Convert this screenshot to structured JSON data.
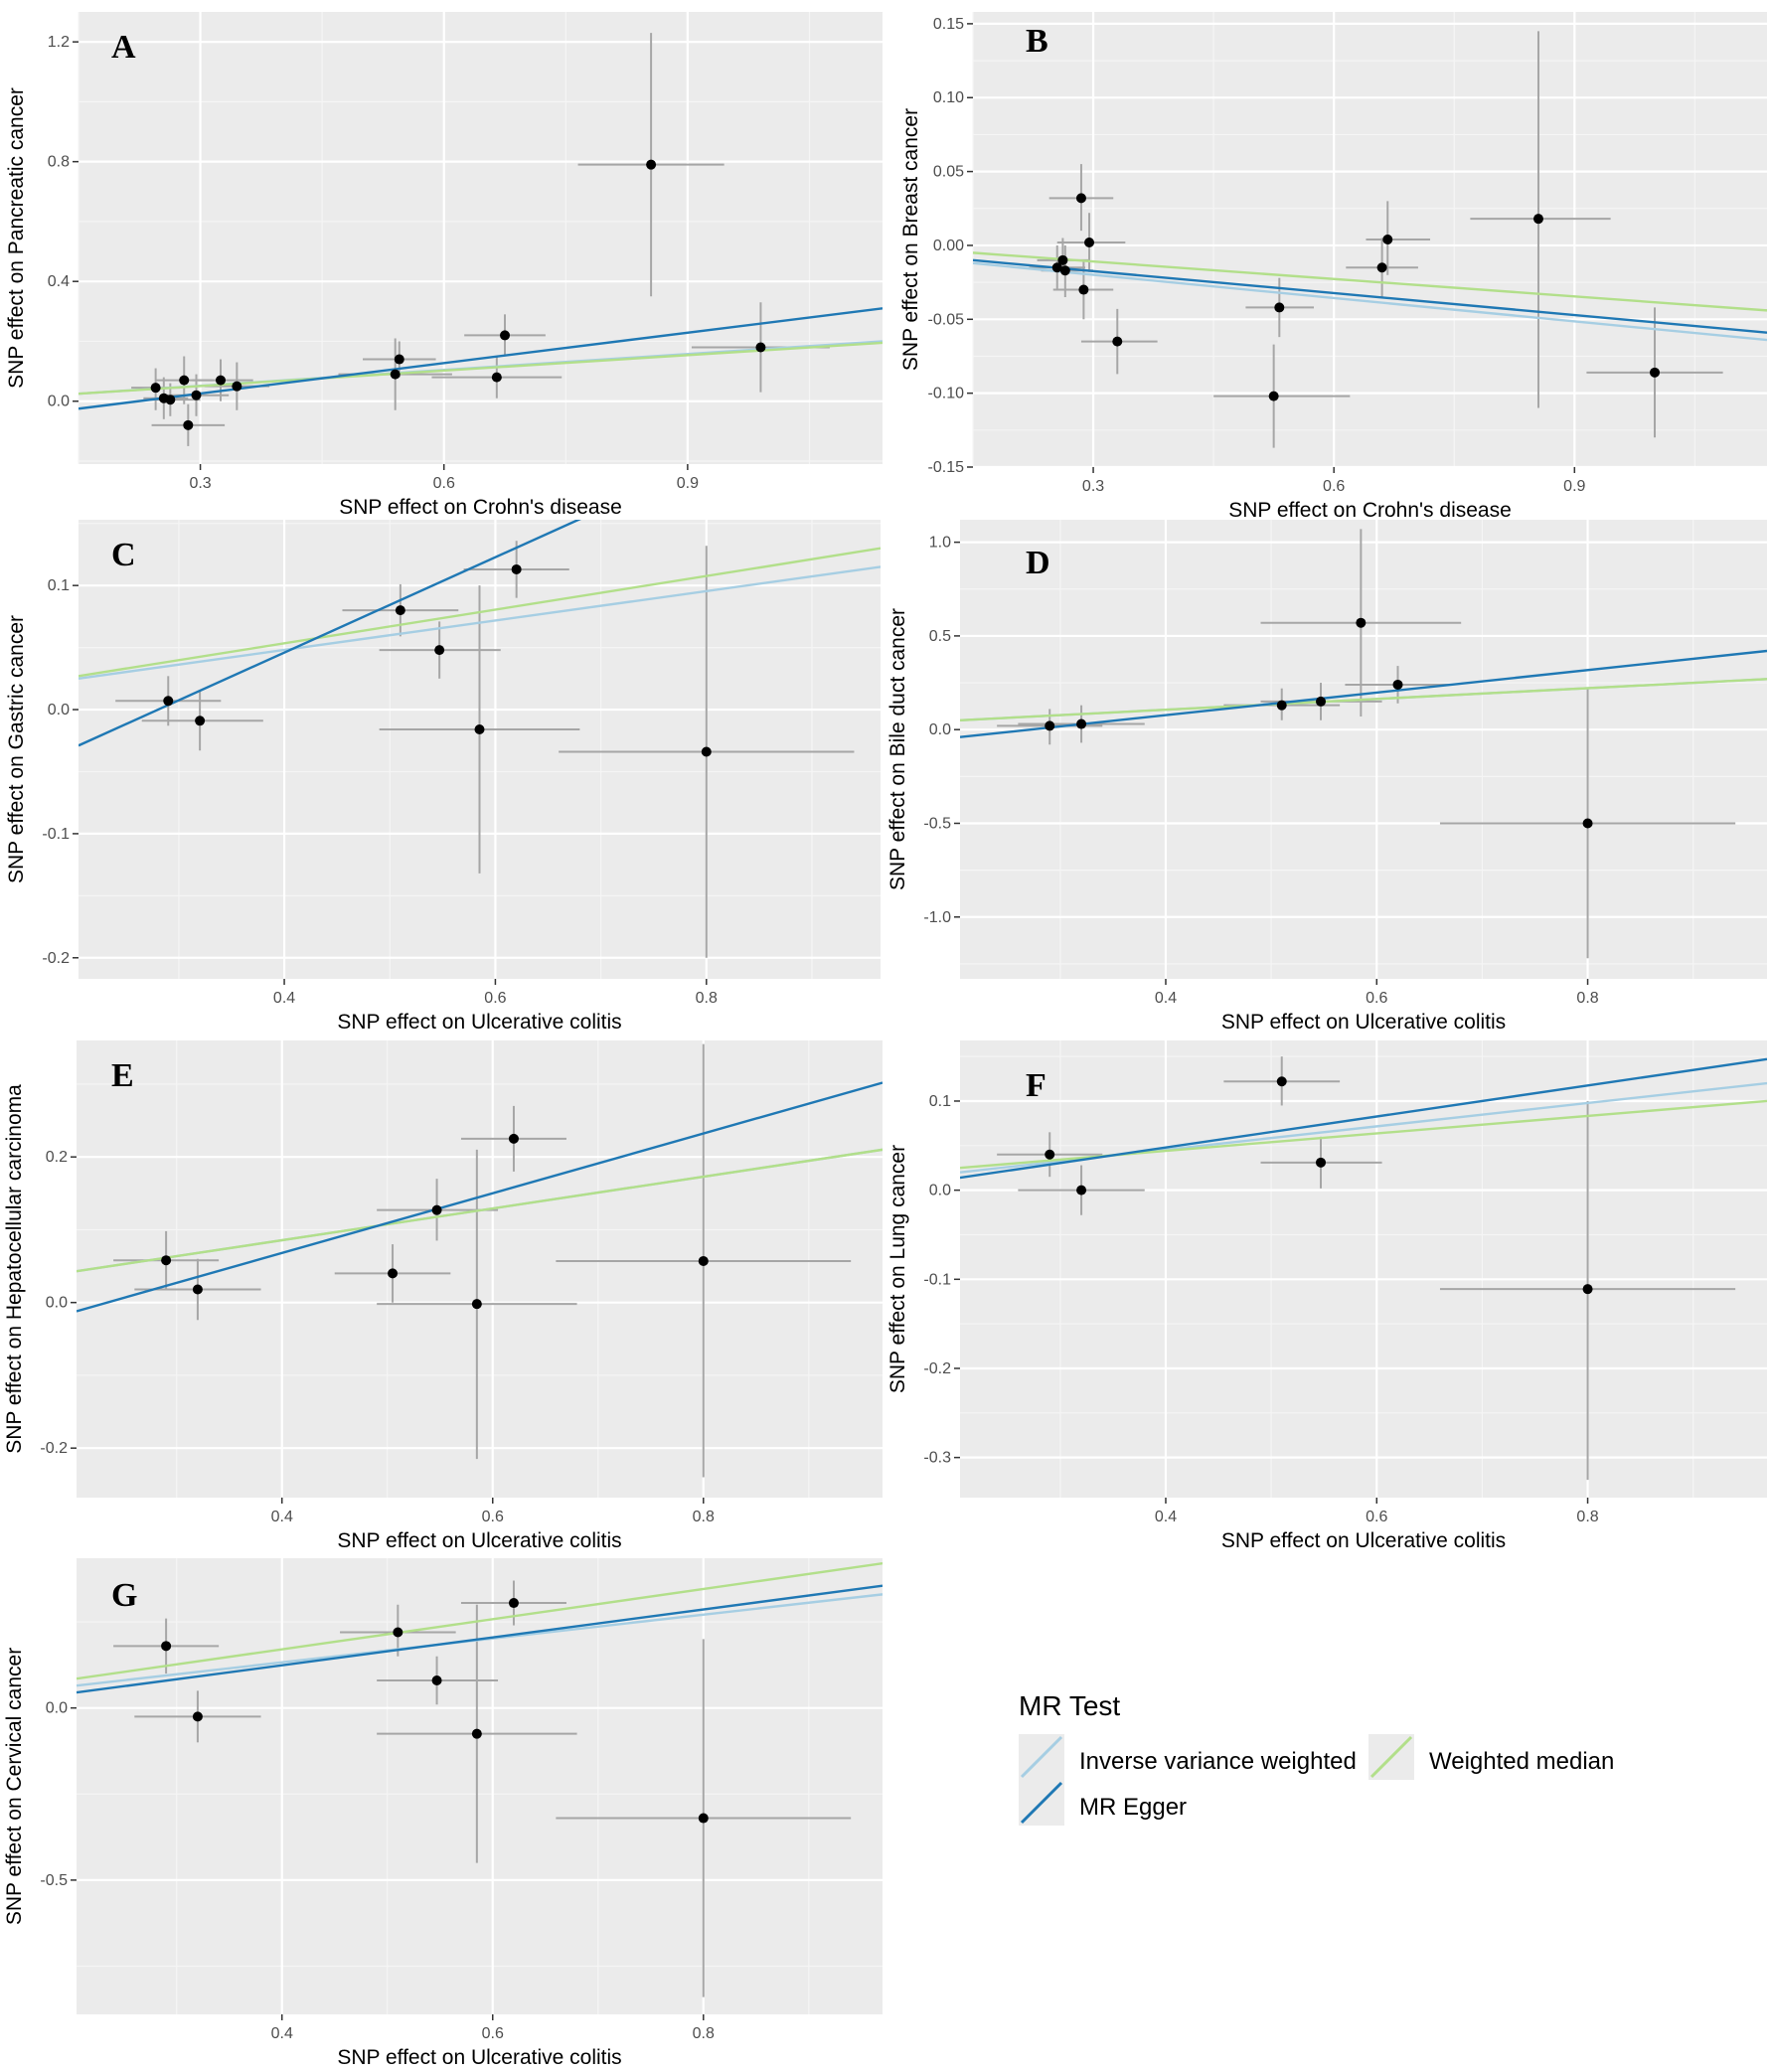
{
  "colors": {
    "panel_bg": "#ebebeb",
    "grid_major": "#ffffff",
    "errbar": "#a6a6a6",
    "point": "#000000",
    "ivw": "#a6cee3",
    "egger": "#1f78b4",
    "wmedian": "#b2df8a"
  },
  "legend": {
    "title": "MR Test",
    "items": [
      {
        "key": "ivw",
        "label": "Inverse variance weighted"
      },
      {
        "key": "wmedian",
        "label": "Weighted median"
      },
      {
        "key": "egger",
        "label": "MR Egger"
      }
    ]
  },
  "chart_data": [
    {
      "panel": "A",
      "type": "scatter",
      "xlabel": "SNP effect on Crohn's disease",
      "ylabel": "SNP effect on Pancreatic cancer",
      "xlim": [
        0.15,
        1.14
      ],
      "ylim": [
        -0.21,
        1.3
      ],
      "xticks": [
        0.3,
        0.6,
        0.9
      ],
      "xtick_labels": [
        "0.3",
        "0.6",
        "0.9"
      ],
      "yticks": [
        0.0,
        0.4,
        0.8,
        1.2
      ],
      "ytick_labels": [
        "0.0",
        "0.4",
        "0.8",
        "1.2"
      ],
      "points": [
        {
          "x": 0.245,
          "y": 0.045,
          "xlo": 0.215,
          "xhi": 0.275,
          "ylo": -0.03,
          "yhi": 0.11
        },
        {
          "x": 0.255,
          "y": 0.01,
          "xlo": 0.23,
          "xhi": 0.285,
          "ylo": -0.06,
          "yhi": 0.08
        },
        {
          "x": 0.263,
          "y": 0.005,
          "xlo": 0.23,
          "xhi": 0.3,
          "ylo": -0.05,
          "yhi": 0.06
        },
        {
          "x": 0.28,
          "y": 0.07,
          "xlo": 0.245,
          "xhi": 0.315,
          "ylo": -0.01,
          "yhi": 0.15
        },
        {
          "x": 0.285,
          "y": -0.08,
          "xlo": 0.24,
          "xhi": 0.33,
          "ylo": -0.15,
          "yhi": -0.01
        },
        {
          "x": 0.295,
          "y": 0.02,
          "xlo": 0.255,
          "xhi": 0.335,
          "ylo": -0.05,
          "yhi": 0.09
        },
        {
          "x": 0.325,
          "y": 0.07,
          "xlo": 0.29,
          "xhi": 0.365,
          "ylo": 0.0,
          "yhi": 0.14
        },
        {
          "x": 0.345,
          "y": 0.05,
          "xlo": 0.305,
          "xhi": 0.385,
          "ylo": -0.03,
          "yhi": 0.13
        },
        {
          "x": 0.54,
          "y": 0.09,
          "xlo": 0.47,
          "xhi": 0.61,
          "ylo": -0.03,
          "yhi": 0.21
        },
        {
          "x": 0.545,
          "y": 0.14,
          "xlo": 0.5,
          "xhi": 0.59,
          "ylo": 0.08,
          "yhi": 0.2
        },
        {
          "x": 0.665,
          "y": 0.08,
          "xlo": 0.585,
          "xhi": 0.745,
          "ylo": 0.01,
          "yhi": 0.15
        },
        {
          "x": 0.675,
          "y": 0.22,
          "xlo": 0.625,
          "xhi": 0.725,
          "ylo": 0.15,
          "yhi": 0.29
        },
        {
          "x": 0.855,
          "y": 0.79,
          "xlo": 0.765,
          "xhi": 0.945,
          "ylo": 0.35,
          "yhi": 1.23
        },
        {
          "x": 0.99,
          "y": 0.18,
          "xlo": 0.905,
          "xhi": 1.075,
          "ylo": 0.03,
          "yhi": 0.33
        }
      ],
      "lines": [
        {
          "key": "ivw",
          "y_at_xmin": 0.025,
          "y_at_xmax": 0.2
        },
        {
          "key": "wmedian",
          "y_at_xmin": 0.025,
          "y_at_xmax": 0.195
        },
        {
          "key": "egger",
          "y_at_xmin": -0.025,
          "y_at_xmax": 0.31
        }
      ]
    },
    {
      "panel": "B",
      "type": "scatter",
      "xlabel": "SNP effect on Crohn's disease",
      "ylabel": "SNP effect on Breast cancer",
      "xlim": [
        0.15,
        1.14
      ],
      "ylim": [
        -0.15,
        0.158
      ],
      "xticks": [
        0.3,
        0.6,
        0.9
      ],
      "xtick_labels": [
        "0.3",
        "0.6",
        "0.9"
      ],
      "yticks": [
        -0.15,
        -0.1,
        -0.05,
        0.0,
        0.05,
        0.1,
        0.15
      ],
      "ytick_labels": [
        "-0.15",
        "-0.10",
        "-0.05",
        "0.00",
        "0.05",
        "0.10",
        "0.15"
      ],
      "points": [
        {
          "x": 0.255,
          "y": -0.015,
          "xlo": 0.22,
          "xhi": 0.29,
          "ylo": -0.03,
          "yhi": 0.0
        },
        {
          "x": 0.262,
          "y": -0.01,
          "xlo": 0.23,
          "xhi": 0.295,
          "ylo": -0.02,
          "yhi": 0.005
        },
        {
          "x": 0.265,
          "y": -0.017,
          "xlo": 0.235,
          "xhi": 0.3,
          "ylo": -0.035,
          "yhi": 0.0
        },
        {
          "x": 0.285,
          "y": 0.032,
          "xlo": 0.245,
          "xhi": 0.325,
          "ylo": 0.01,
          "yhi": 0.055
        },
        {
          "x": 0.288,
          "y": -0.03,
          "xlo": 0.25,
          "xhi": 0.325,
          "ylo": -0.05,
          "yhi": -0.01
        },
        {
          "x": 0.295,
          "y": 0.002,
          "xlo": 0.255,
          "xhi": 0.34,
          "ylo": -0.018,
          "yhi": 0.022
        },
        {
          "x": 0.33,
          "y": -0.065,
          "xlo": 0.285,
          "xhi": 0.38,
          "ylo": -0.087,
          "yhi": -0.043
        },
        {
          "x": 0.525,
          "y": -0.102,
          "xlo": 0.45,
          "xhi": 0.62,
          "ylo": -0.137,
          "yhi": -0.067
        },
        {
          "x": 0.532,
          "y": -0.042,
          "xlo": 0.49,
          "xhi": 0.575,
          "ylo": -0.062,
          "yhi": -0.022
        },
        {
          "x": 0.66,
          "y": -0.015,
          "xlo": 0.615,
          "xhi": 0.705,
          "ylo": -0.035,
          "yhi": 0.005
        },
        {
          "x": 0.667,
          "y": 0.004,
          "xlo": 0.64,
          "xhi": 0.72,
          "ylo": -0.02,
          "yhi": 0.03
        },
        {
          "x": 0.855,
          "y": 0.018,
          "xlo": 0.77,
          "xhi": 0.945,
          "ylo": -0.11,
          "yhi": 0.145
        },
        {
          "x": 1.0,
          "y": -0.086,
          "xlo": 0.915,
          "xhi": 1.085,
          "ylo": -0.13,
          "yhi": -0.042
        }
      ],
      "lines": [
        {
          "key": "ivw",
          "y_at_xmin": -0.012,
          "y_at_xmax": -0.064
        },
        {
          "key": "wmedian",
          "y_at_xmin": -0.005,
          "y_at_xmax": -0.044
        },
        {
          "key": "egger",
          "y_at_xmin": -0.01,
          "y_at_xmax": -0.059
        }
      ]
    },
    {
      "panel": "C",
      "type": "scatter",
      "xlabel": "SNP effect on Ulcerative colitis",
      "ylabel": "SNP effect on Gastric cancer",
      "xlim": [
        0.205,
        0.965
      ],
      "ylim": [
        -0.217,
        0.153
      ],
      "xticks": [
        0.4,
        0.6,
        0.8
      ],
      "xtick_labels": [
        "0.4",
        "0.6",
        "0.8"
      ],
      "yticks": [
        -0.2,
        -0.1,
        0.0,
        0.1
      ],
      "ytick_labels": [
        "-0.2",
        "-0.1",
        "0.0",
        "0.1"
      ],
      "points": [
        {
          "x": 0.29,
          "y": 0.007,
          "xlo": 0.24,
          "xhi": 0.34,
          "ylo": -0.013,
          "yhi": 0.027
        },
        {
          "x": 0.32,
          "y": -0.009,
          "xlo": 0.265,
          "xhi": 0.38,
          "ylo": -0.033,
          "yhi": 0.015
        },
        {
          "x": 0.51,
          "y": 0.08,
          "xlo": 0.455,
          "xhi": 0.565,
          "ylo": 0.059,
          "yhi": 0.101
        },
        {
          "x": 0.547,
          "y": 0.048,
          "xlo": 0.49,
          "xhi": 0.605,
          "ylo": 0.025,
          "yhi": 0.071
        },
        {
          "x": 0.585,
          "y": -0.016,
          "xlo": 0.49,
          "xhi": 0.68,
          "ylo": -0.132,
          "yhi": 0.1
        },
        {
          "x": 0.62,
          "y": 0.113,
          "xlo": 0.57,
          "xhi": 0.67,
          "ylo": 0.09,
          "yhi": 0.136
        },
        {
          "x": 0.8,
          "y": -0.034,
          "xlo": 0.66,
          "xhi": 0.94,
          "ylo": -0.2,
          "yhi": 0.132
        }
      ],
      "lines": [
        {
          "key": "ivw",
          "y_at_xmin": 0.025,
          "y_at_xmax": 0.115
        },
        {
          "key": "wmedian",
          "y_at_xmin": 0.027,
          "y_at_xmax": 0.13
        },
        {
          "key": "egger",
          "y_at_xmin": -0.029,
          "y_at_xmax": 0.263
        }
      ]
    },
    {
      "panel": "D",
      "type": "scatter",
      "xlabel": "SNP effect on Ulcerative colitis",
      "ylabel": "SNP effect on Bile duct cancer",
      "xlim": [
        0.205,
        0.97
      ],
      "ylim": [
        -1.33,
        1.12
      ],
      "xticks": [
        0.4,
        0.6,
        0.8
      ],
      "xtick_labels": [
        "0.4",
        "0.6",
        "0.8"
      ],
      "yticks": [
        -1.0,
        -0.5,
        0.0,
        0.5,
        1.0
      ],
      "ytick_labels": [
        "-1.0",
        "-0.5",
        "0.0",
        "0.5",
        "1.0"
      ],
      "points": [
        {
          "x": 0.29,
          "y": 0.02,
          "xlo": 0.24,
          "xhi": 0.34,
          "ylo": -0.08,
          "yhi": 0.11
        },
        {
          "x": 0.32,
          "y": 0.03,
          "xlo": 0.26,
          "xhi": 0.38,
          "ylo": -0.07,
          "yhi": 0.13
        },
        {
          "x": 0.51,
          "y": 0.13,
          "xlo": 0.455,
          "xhi": 0.565,
          "ylo": 0.05,
          "yhi": 0.22
        },
        {
          "x": 0.547,
          "y": 0.15,
          "xlo": 0.49,
          "xhi": 0.605,
          "ylo": 0.05,
          "yhi": 0.25
        },
        {
          "x": 0.585,
          "y": 0.57,
          "xlo": 0.49,
          "xhi": 0.68,
          "ylo": 0.07,
          "yhi": 1.07
        },
        {
          "x": 0.62,
          "y": 0.24,
          "xlo": 0.57,
          "xhi": 0.67,
          "ylo": 0.14,
          "yhi": 0.34
        },
        {
          "x": 0.8,
          "y": -0.5,
          "xlo": 0.66,
          "xhi": 0.94,
          "ylo": -1.22,
          "yhi": 0.22
        }
      ],
      "lines": [
        {
          "key": "ivw",
          "y_at_xmin": 0.05,
          "y_at_xmax": 0.27
        },
        {
          "key": "wmedian",
          "y_at_xmin": 0.05,
          "y_at_xmax": 0.27
        },
        {
          "key": "egger",
          "y_at_xmin": -0.04,
          "y_at_xmax": 0.42
        }
      ]
    },
    {
      "panel": "E",
      "type": "scatter",
      "xlabel": "SNP effect on Ulcerative colitis",
      "ylabel": "SNP effect on Hepatocellular carcinoma",
      "xlim": [
        0.205,
        0.97
      ],
      "ylim": [
        -0.268,
        0.36
      ],
      "xticks": [
        0.4,
        0.6,
        0.8
      ],
      "xtick_labels": [
        "0.4",
        "0.6",
        "0.8"
      ],
      "yticks": [
        -0.2,
        0.0,
        0.2
      ],
      "ytick_labels": [
        "-0.2",
        "0.0",
        "0.2"
      ],
      "points": [
        {
          "x": 0.29,
          "y": 0.058,
          "xlo": 0.24,
          "xhi": 0.34,
          "ylo": 0.018,
          "yhi": 0.098
        },
        {
          "x": 0.32,
          "y": 0.018,
          "xlo": 0.26,
          "xhi": 0.38,
          "ylo": -0.024,
          "yhi": 0.06
        },
        {
          "x": 0.505,
          "y": 0.04,
          "xlo": 0.45,
          "xhi": 0.56,
          "ylo": 0.0,
          "yhi": 0.08
        },
        {
          "x": 0.547,
          "y": 0.127,
          "xlo": 0.49,
          "xhi": 0.605,
          "ylo": 0.085,
          "yhi": 0.17
        },
        {
          "x": 0.585,
          "y": -0.002,
          "xlo": 0.49,
          "xhi": 0.68,
          "ylo": -0.215,
          "yhi": 0.21
        },
        {
          "x": 0.62,
          "y": 0.225,
          "xlo": 0.57,
          "xhi": 0.67,
          "ylo": 0.18,
          "yhi": 0.27
        },
        {
          "x": 0.8,
          "y": 0.057,
          "xlo": 0.66,
          "xhi": 0.94,
          "ylo": -0.24,
          "yhi": 0.355
        }
      ],
      "lines": [
        {
          "key": "ivw",
          "y_at_xmin": 0.043,
          "y_at_xmax": 0.21
        },
        {
          "key": "wmedian",
          "y_at_xmin": 0.043,
          "y_at_xmax": 0.21
        },
        {
          "key": "egger",
          "y_at_xmin": -0.012,
          "y_at_xmax": 0.302
        }
      ]
    },
    {
      "panel": "F",
      "type": "scatter",
      "xlabel": "SNP effect on Ulcerative colitis",
      "ylabel": "SNP effect on Lung cancer",
      "xlim": [
        0.205,
        0.97
      ],
      "ylim": [
        -0.345,
        0.168
      ],
      "xticks": [
        0.4,
        0.6,
        0.8
      ],
      "xtick_labels": [
        "0.4",
        "0.6",
        "0.8"
      ],
      "yticks": [
        -0.3,
        -0.2,
        -0.1,
        0.0,
        0.1
      ],
      "ytick_labels": [
        "-0.3",
        "-0.2",
        "-0.1",
        "0.0",
        "0.1"
      ],
      "points": [
        {
          "x": 0.29,
          "y": 0.04,
          "xlo": 0.24,
          "xhi": 0.34,
          "ylo": 0.015,
          "yhi": 0.065
        },
        {
          "x": 0.32,
          "y": 0.0,
          "xlo": 0.26,
          "xhi": 0.38,
          "ylo": -0.028,
          "yhi": 0.028
        },
        {
          "x": 0.51,
          "y": 0.122,
          "xlo": 0.455,
          "xhi": 0.565,
          "ylo": 0.095,
          "yhi": 0.15
        },
        {
          "x": 0.547,
          "y": 0.031,
          "xlo": 0.49,
          "xhi": 0.605,
          "ylo": 0.002,
          "yhi": 0.06
        },
        {
          "x": 0.8,
          "y": -0.111,
          "xlo": 0.66,
          "xhi": 0.94,
          "ylo": -0.325,
          "yhi": 0.1
        }
      ],
      "lines": [
        {
          "key": "ivw",
          "y_at_xmin": 0.02,
          "y_at_xmax": 0.12
        },
        {
          "key": "wmedian",
          "y_at_xmin": 0.025,
          "y_at_xmax": 0.1
        },
        {
          "key": "egger",
          "y_at_xmin": 0.014,
          "y_at_xmax": 0.147
        }
      ]
    },
    {
      "panel": "G",
      "type": "scatter",
      "xlabel": "SNP effect on Ulcerative colitis",
      "ylabel": "SNP effect on Cervical cancer",
      "xlim": [
        0.205,
        0.97
      ],
      "ylim": [
        -0.89,
        0.435
      ],
      "xticks": [
        0.4,
        0.6,
        0.8
      ],
      "xtick_labels": [
        "0.4",
        "0.6",
        "0.8"
      ],
      "yticks": [
        -0.5,
        0.0
      ],
      "ytick_labels": [
        "-0.5",
        "0.0"
      ],
      "points": [
        {
          "x": 0.29,
          "y": 0.18,
          "xlo": 0.24,
          "xhi": 0.34,
          "ylo": 0.1,
          "yhi": 0.26
        },
        {
          "x": 0.32,
          "y": -0.025,
          "xlo": 0.26,
          "xhi": 0.38,
          "ylo": -0.1,
          "yhi": 0.05
        },
        {
          "x": 0.51,
          "y": 0.22,
          "xlo": 0.455,
          "xhi": 0.565,
          "ylo": 0.15,
          "yhi": 0.3
        },
        {
          "x": 0.547,
          "y": 0.08,
          "xlo": 0.49,
          "xhi": 0.605,
          "ylo": 0.01,
          "yhi": 0.15
        },
        {
          "x": 0.585,
          "y": -0.075,
          "xlo": 0.49,
          "xhi": 0.68,
          "ylo": -0.45,
          "yhi": 0.3
        },
        {
          "x": 0.62,
          "y": 0.305,
          "xlo": 0.57,
          "xhi": 0.67,
          "ylo": 0.24,
          "yhi": 0.37
        },
        {
          "x": 0.8,
          "y": -0.32,
          "xlo": 0.66,
          "xhi": 0.94,
          "ylo": -0.84,
          "yhi": 0.2
        }
      ],
      "lines": [
        {
          "key": "ivw",
          "y_at_xmin": 0.065,
          "y_at_xmax": 0.33
        },
        {
          "key": "wmedian",
          "y_at_xmin": 0.085,
          "y_at_xmax": 0.42
        },
        {
          "key": "egger",
          "y_at_xmin": 0.045,
          "y_at_xmax": 0.355
        }
      ]
    }
  ]
}
